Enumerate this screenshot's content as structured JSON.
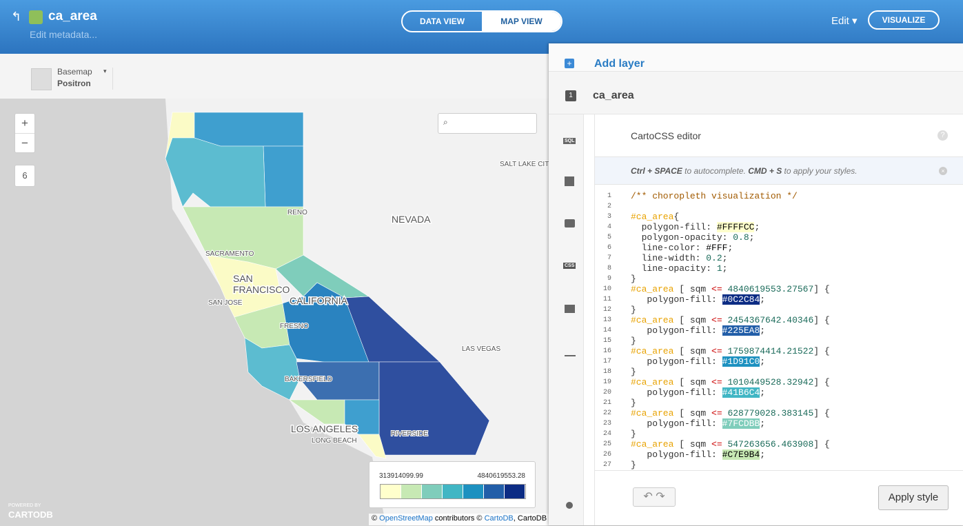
{
  "header": {
    "title": "ca_area",
    "subtitle": "Edit metadata...",
    "tabs": [
      "DATA VIEW",
      "MAP VIEW"
    ],
    "edit": "Edit",
    "visualize": "VISUALIZE"
  },
  "toolbar": {
    "basemap_label": "Basemap",
    "basemap_value": "Positron"
  },
  "map": {
    "zoom_in": "+",
    "zoom_out": "−",
    "zoom_level": "6",
    "labels": [
      {
        "text": "RENO"
      },
      {
        "text": "NEVADA"
      },
      {
        "text": "SALT LAKE CIT"
      },
      {
        "text": "SACRAMENTO"
      },
      {
        "text": "SAN"
      },
      {
        "text": "FRANCISCO"
      },
      {
        "text": "SAN JOSE"
      },
      {
        "text": "CALIFORNIA"
      },
      {
        "text": "FRESNO"
      },
      {
        "text": "LAS VEGAS"
      },
      {
        "text": "BAKERSFIELD"
      },
      {
        "text": "LOS ANGELES"
      },
      {
        "text": "LONG BEACH"
      },
      {
        "text": "RIVERSIDE"
      }
    ],
    "legend": {
      "min": "313914099.99",
      "max": "4840619553.28",
      "colors": [
        "#FFFFCC",
        "#C7E9B4",
        "#7FCDBB",
        "#41B6C4",
        "#1D91C0",
        "#225EA8",
        "#0C2C84"
      ]
    },
    "attribution": [
      "©",
      "OpenStreetMap",
      "contributors ©",
      "CartoDB",
      ", CartoDB"
    ],
    "powered_by": "POWERED BY",
    "brand": "CARTODB"
  },
  "panel": {
    "add_layer": "Add layer",
    "layer_number": "1",
    "layer_name": "ca_area",
    "tabs": [
      "SQL",
      "CSS"
    ],
    "editor_title": "CartoCSS editor",
    "help": "?",
    "hint": [
      {
        "text": "Ctrl + SPACE",
        "bold": true
      },
      {
        "text": " to autocomplete. ",
        "bold": false
      },
      {
        "text": "CMD + S",
        "bold": true
      },
      {
        "text": " to apply your styles.",
        "bold": false
      }
    ],
    "code": [
      {
        "n": "1",
        "text": "/** choropleth visualization */"
      },
      {
        "n": "2",
        "text": ""
      },
      {
        "n": "3",
        "text": "#ca_area{"
      },
      {
        "n": "4",
        "text": "  polygon-fill: #FFFFCC;"
      },
      {
        "n": "5",
        "text": "  polygon-opacity: 0.8;"
      },
      {
        "n": "6",
        "text": "  line-color: #FFF;"
      },
      {
        "n": "7",
        "text": "  line-width: 0.2;"
      },
      {
        "n": "8",
        "text": "  line-opacity: 1;"
      },
      {
        "n": "9",
        "text": "}"
      },
      {
        "n": "10",
        "text": "#ca_area [ sqm <= 4840619553.27567] {"
      },
      {
        "n": "11",
        "text": "   polygon-fill: #0C2C84;"
      },
      {
        "n": "12",
        "text": "}"
      },
      {
        "n": "13",
        "text": "#ca_area [ sqm <= 2454367642.40346] {"
      },
      {
        "n": "14",
        "text": "   polygon-fill: #225EA8;"
      },
      {
        "n": "15",
        "text": "}"
      },
      {
        "n": "16",
        "text": "#ca_area [ sqm <= 1759874414.21522] {"
      },
      {
        "n": "17",
        "text": "   polygon-fill: #1D91C0;"
      },
      {
        "n": "18",
        "text": "}"
      },
      {
        "n": "19",
        "text": "#ca_area [ sqm <= 1010449528.32942] {"
      },
      {
        "n": "20",
        "text": "   polygon-fill: #41B6C4;"
      },
      {
        "n": "21",
        "text": "}"
      },
      {
        "n": "22",
        "text": "#ca_area [ sqm <= 628779028.383145] {"
      },
      {
        "n": "23",
        "text": "   polygon-fill: #7FCDBB;"
      },
      {
        "n": "24",
        "text": "}"
      },
      {
        "n": "25",
        "text": "#ca_area [ sqm <= 547263656.463908] {"
      },
      {
        "n": "26",
        "text": "   polygon-fill: #C7E9B4;"
      },
      {
        "n": "27",
        "text": "}"
      }
    ],
    "apply": "Apply style"
  }
}
